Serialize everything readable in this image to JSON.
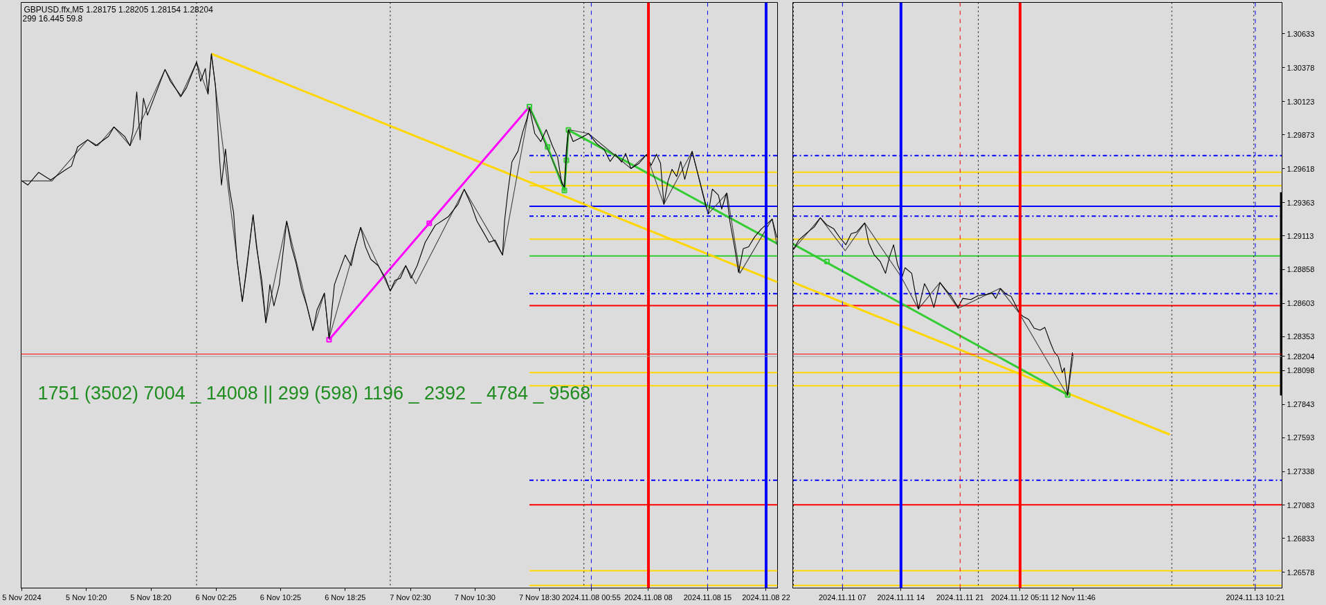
{
  "chart_data": [
    {
      "type": "line",
      "title": "GBPUSD.ffx,M5 1.28175 1.28205 1.28154 1.28204",
      "subtitle": "299 16.445 59.8",
      "annotations": [
        "1751 (3502) 7004 _ 14008 || 299 (598) 1196 _ 2392 _ 4784 _ 9568"
      ],
      "xlim": [
        "2024-11-05T02:15",
        "2024-11-09T00:00"
      ],
      "xticks": [
        {
          "value": "2024-11-05T02:20",
          "label": "5 Nov 2024"
        },
        {
          "value": "2024-11-05T10:20",
          "label": "5 Nov 10:20"
        },
        {
          "value": "2024-11-05T18:20",
          "label": "5 Nov 18:20"
        },
        {
          "value": "2024-11-06T02:25",
          "label": "6 Nov 02:25"
        },
        {
          "value": "2024-11-06T10:25",
          "label": "6 Nov 10:25"
        },
        {
          "value": "2024-11-06T18:25",
          "label": "6 Nov 18:25"
        },
        {
          "value": "2024-11-07T02:30",
          "label": "7 Nov 02:30"
        },
        {
          "value": "2024-11-07T10:30",
          "label": "7 Nov 10:30"
        },
        {
          "value": "2024-11-07T18:30",
          "label": "7 Nov 18:30"
        },
        {
          "value": "2024-11-08T00:55",
          "label": "2024.11.08 00:55"
        },
        {
          "value": "2024-11-08T08:00",
          "label": "2024.11.08 08"
        },
        {
          "value": "2024-11-08T15:20",
          "label": "2024.11.08 15"
        },
        {
          "value": "2024-11-08T22:35",
          "label": "2024.11.08 22"
        }
      ],
      "ylim": [
        1.2646,
        1.3087
      ],
      "tick_labels": "x",
      "grid": false,
      "series": [
        {
          "color": "#0000ff",
          "line_style": "dashdot",
          "x": [
            "2024-11-07T17:15",
            "2024-11-09T00:00"
          ],
          "values": [
            1.29717,
            1.29717
          ]
        },
        {
          "color": "#ffd700",
          "x": [
            "2024-11-07T17:15",
            "2024-11-09T00:00"
          ],
          "values": [
            1.29592,
            1.29592
          ]
        },
        {
          "color": "#ffd700",
          "x": [
            "2024-11-07T17:15",
            "2024-11-09T00:00"
          ],
          "values": [
            1.2949,
            1.2949
          ]
        },
        {
          "color": "#0000ff",
          "x": [
            "2024-11-07T17:15",
            "2024-11-09T00:00"
          ],
          "values": [
            1.29335,
            1.29335
          ]
        },
        {
          "color": "#0000ff",
          "line_style": "dashdot",
          "x": [
            "2024-11-07T17:15",
            "2024-11-09T00:00"
          ],
          "values": [
            1.2926,
            1.2926
          ]
        },
        {
          "color": "#ffd700",
          "x": [
            "2024-11-07T17:15",
            "2024-11-09T00:00"
          ],
          "values": [
            1.29087,
            1.29087
          ]
        },
        {
          "color": "#32cd32",
          "x": [
            "2024-11-07T17:15",
            "2024-11-09T00:00"
          ],
          "values": [
            1.28961,
            1.28961
          ]
        },
        {
          "color": "#0000ff",
          "line_style": "dashdot",
          "x": [
            "2024-11-07T17:15",
            "2024-11-09T00:00"
          ],
          "values": [
            1.28677,
            1.28677
          ]
        },
        {
          "color": "#ff0000",
          "x": [
            "2024-11-07T17:15",
            "2024-11-09T00:00"
          ],
          "values": [
            1.28587,
            1.28587
          ]
        },
        {
          "color": "#ffd700",
          "x": [
            "2024-11-07T17:15",
            "2024-11-09T00:00"
          ],
          "values": [
            1.28082,
            1.28082
          ]
        },
        {
          "color": "#ffd700",
          "x": [
            "2024-11-07T17:15",
            "2024-11-09T00:00"
          ],
          "values": [
            1.27983,
            1.27983
          ]
        },
        {
          "color": "#0000ff",
          "line_style": "dashdot",
          "x": [
            "2024-11-07T17:15",
            "2024-11-09T00:00"
          ],
          "values": [
            1.27272,
            1.27272
          ]
        },
        {
          "color": "#ff0000",
          "x": [
            "2024-11-07T17:15",
            "2024-11-09T00:00"
          ],
          "values": [
            1.27087,
            1.27087
          ]
        },
        {
          "color": "#ffd700",
          "x": [
            "2024-11-07T17:15",
            "2024-11-09T00:00"
          ],
          "values": [
            1.2659,
            1.2659
          ]
        },
        {
          "color": "#ffd700",
          "x": [
            "2024-11-07T17:15",
            "2024-11-09T00:00"
          ],
          "values": [
            1.2648,
            1.2648
          ]
        },
        {
          "color": "#ffd700",
          "x": [
            "2024-11-06T01:50",
            "2024-11-09T00:00"
          ],
          "values": [
            1.30483,
            1.28763
          ]
        },
        {
          "color": "#ff00ff",
          "marker": "square",
          "x": [
            "2024-11-06T16:25",
            "2024-11-07T04:50",
            "2024-11-07T17:15"
          ],
          "values": [
            1.2833,
            1.29207,
            1.30085
          ]
        },
        {
          "color": "#32cd32",
          "marker": "square",
          "x": [
            "2024-11-07T17:15",
            "2024-11-07T19:30",
            "2024-11-07T21:35",
            "2024-11-07T21:50",
            "2024-11-07T22:05"
          ],
          "values": [
            1.30085,
            1.29782,
            1.29453,
            1.29681,
            1.29909
          ]
        },
        {
          "color": "#32cd32",
          "x": [
            "2024-11-07T22:05",
            "2024-11-09T00:00"
          ],
          "values": [
            1.29909,
            1.29052
          ]
        },
        {
          "color": "#404040",
          "x": [
            "2024-11-05T02:20",
            "2024-11-05T06:05",
            "2024-11-05T10:30",
            "2024-11-05T11:45",
            "2024-11-05T13:45",
            "2024-11-05T15:45",
            "2024-11-05T20:05",
            "2024-11-05T22:00",
            "2024-11-06T00:00",
            "2024-11-06T01:25",
            "2024-11-06T01:50",
            "2024-11-06T05:40",
            "2024-11-06T07:00",
            "2024-11-06T08:35",
            "2024-11-06T11:10",
            "2024-11-06T14:25",
            "2024-11-06T15:50",
            "2024-11-06T16:25",
            "2024-11-06T20:20",
            "2024-11-07T00:00",
            "2024-11-07T01:55",
            "2024-11-07T03:10",
            "2024-11-07T09:10",
            "2024-11-07T13:55",
            "2024-11-07T17:15",
            "2024-11-07T21:35",
            "2024-11-07T22:05",
            "2024-11-08T00:35",
            "2024-11-08T05:50",
            "2024-11-08T07:45",
            "2024-11-08T09:55",
            "2024-11-08T13:25",
            "2024-11-08T15:25",
            "2024-11-08T17:45",
            "2024-11-08T19:20",
            "2024-11-08T23:20",
            "2024-11-08T23:55"
          ],
          "values": [
            1.29526,
            1.29526,
            1.29836,
            1.29791,
            1.29932,
            1.29791,
            1.30365,
            1.30158,
            1.3042,
            1.3018,
            1.30483,
            1.28617,
            1.29271,
            1.28458,
            1.29223,
            1.284,
            1.28681,
            1.2834,
            1.29176,
            1.28697,
            1.28888,
            1.28751,
            1.29463,
            1.28968,
            1.30076,
            1.29478,
            1.29912,
            1.29882,
            1.29619,
            1.29724,
            1.2935,
            1.29748,
            1.29278,
            1.29434,
            1.2883,
            1.29239,
            1.29047
          ]
        },
        {
          "color": "#000000",
          "x": [
            "2024-11-05T02:20",
            "2024-11-05T03:05",
            "2024-11-05T04:25",
            "2024-11-05T05:55",
            "2024-11-05T07:40",
            "2024-11-05T08:30",
            "2024-11-05T09:15",
            "2024-11-05T10:30",
            "2024-11-05T11:30",
            "2024-11-05T13:05",
            "2024-11-05T13:45",
            "2024-11-05T15:05",
            "2024-11-05T15:45",
            "2024-11-05T16:05",
            "2024-11-05T16:35",
            "2024-11-05T17:00",
            "2024-11-05T17:25",
            "2024-11-05T17:55",
            "2024-11-05T18:55",
            "2024-11-05T20:05",
            "2024-11-05T20:45",
            "2024-11-05T22:05",
            "2024-11-05T22:45",
            "2024-11-06T00:00",
            "2024-11-06T00:30",
            "2024-11-06T01:05",
            "2024-11-06T01:25",
            "2024-11-06T01:50",
            "2024-11-06T02:20",
            "2024-11-06T02:50",
            "2024-11-06T03:05",
            "2024-11-06T03:35",
            "2024-11-06T04:05",
            "2024-11-06T04:35",
            "2024-11-06T05:00",
            "2024-11-06T05:40",
            "2024-11-06T06:10",
            "2024-11-06T07:00",
            "2024-11-06T07:25",
            "2024-11-06T08:05",
            "2024-11-06T08:35",
            "2024-11-06T09:05",
            "2024-11-06T09:35",
            "2024-11-06T10:15",
            "2024-11-06T11:10",
            "2024-11-06T11:45",
            "2024-11-06T12:20",
            "2024-11-06T13:00",
            "2024-11-06T13:40",
            "2024-11-06T14:25",
            "2024-11-06T14:55",
            "2024-11-06T15:50",
            "2024-11-06T16:25",
            "2024-11-06T17:05",
            "2024-11-06T17:45",
            "2024-11-06T18:25",
            "2024-11-06T19:10",
            "2024-11-06T19:40",
            "2024-11-06T20:20",
            "2024-11-06T20:55",
            "2024-11-06T21:35",
            "2024-11-06T22:30",
            "2024-11-06T23:25",
            "2024-11-07T00:00",
            "2024-11-07T00:35",
            "2024-11-07T01:15",
            "2024-11-07T01:55",
            "2024-11-07T02:35",
            "2024-11-07T03:20",
            "2024-11-07T04:20",
            "2024-11-07T05:35",
            "2024-11-07T07:10",
            "2024-11-07T08:25",
            "2024-11-07T09:10",
            "2024-11-07T10:00",
            "2024-11-07T10:45",
            "2024-11-07T11:30",
            "2024-11-07T12:15",
            "2024-11-07T13:00",
            "2024-11-07T13:55",
            "2024-11-07T14:10",
            "2024-11-07T14:35",
            "2024-11-07T15:05",
            "2024-11-07T15:50",
            "2024-11-07T16:25",
            "2024-11-07T16:55",
            "2024-11-07T17:15",
            "2024-11-07T17:55",
            "2024-11-07T18:40",
            "2024-11-07T19:20",
            "2024-11-07T20:05",
            "2024-11-07T20:45",
            "2024-11-07T21:15",
            "2024-11-07T21:35",
            "2024-11-07T21:50",
            "2024-11-07T22:05",
            "2024-11-07T22:40",
            "2024-11-07T23:40",
            "2024-11-08T00:35",
            "2024-11-08T01:35",
            "2024-11-08T02:30",
            "2024-11-08T03:15",
            "2024-11-08T03:55",
            "2024-11-08T04:40",
            "2024-11-08T05:10",
            "2024-11-08T05:50",
            "2024-11-08T06:50",
            "2024-11-08T07:45",
            "2024-11-08T08:20",
            "2024-11-08T09:00",
            "2024-11-08T09:30",
            "2024-11-08T09:55",
            "2024-11-08T10:25",
            "2024-11-08T10:55",
            "2024-11-08T11:30",
            "2024-11-08T12:00",
            "2024-11-08T12:30",
            "2024-11-08T13:25",
            "2024-11-08T13:55",
            "2024-11-08T14:35",
            "2024-11-08T15:05",
            "2024-11-08T15:25",
            "2024-11-08T15:55",
            "2024-11-08T16:40",
            "2024-11-08T17:05",
            "2024-11-08T17:40",
            "2024-11-08T18:05",
            "2024-11-08T18:40",
            "2024-11-08T19:10",
            "2024-11-08T19:45",
            "2024-11-08T20:25",
            "2024-11-08T21:10",
            "2024-11-08T22:00",
            "2024-11-08T22:50",
            "2024-11-08T23:20",
            "2024-11-08T23:55"
          ],
          "values": [
            1.29526,
            1.29495,
            1.2959,
            1.29533,
            1.29606,
            1.29638,
            1.29782,
            1.29836,
            1.29791,
            1.29861,
            1.29932,
            1.29861,
            1.29791,
            1.29893,
            1.30196,
            1.29836,
            1.30149,
            1.30021,
            1.3018,
            1.30365,
            1.30276,
            1.30164,
            1.30228,
            1.3042,
            1.30276,
            1.30372,
            1.3018,
            1.30483,
            1.30244,
            1.29702,
            1.29495,
            1.29766,
            1.29463,
            1.29287,
            1.28936,
            1.28617,
            1.28841,
            1.29271,
            1.29032,
            1.28777,
            1.28458,
            1.28745,
            1.28585,
            1.28745,
            1.29223,
            1.29032,
            1.28904,
            1.28713,
            1.28585,
            1.284,
            1.28553,
            1.28681,
            1.2834,
            1.28745,
            1.28857,
            1.28968,
            1.28888,
            1.29032,
            1.29176,
            1.29032,
            1.28936,
            1.28888,
            1.28793,
            1.28697,
            1.28777,
            1.28793,
            1.28888,
            1.28793,
            1.28888,
            1.29064,
            1.29192,
            1.29255,
            1.29351,
            1.29463,
            1.29351,
            1.29223,
            1.29144,
            1.29064,
            1.2908,
            1.28968,
            1.29223,
            1.29447,
            1.2967,
            1.2975,
            1.29893,
            1.29989,
            1.30076,
            1.29882,
            1.29822,
            1.29912,
            1.29792,
            1.29703,
            1.29508,
            1.29478,
            1.29763,
            1.29912,
            1.29822,
            1.29852,
            1.29882,
            1.29807,
            1.29763,
            1.29673,
            1.29727,
            1.29667,
            1.29733,
            1.29619,
            1.29658,
            1.29724,
            1.29643,
            1.29727,
            1.29658,
            1.2935,
            1.29523,
            1.29613,
            1.29559,
            1.29673,
            1.29538,
            1.29748,
            1.29628,
            1.29464,
            1.29344,
            1.29278,
            1.29464,
            1.29419,
            1.29314,
            1.29434,
            1.29224,
            1.2903,
            1.28836,
            1.29015,
            1.2903,
            1.29105,
            1.29165,
            1.29209,
            1.29239,
            1.291
          ]
        }
      ],
      "ref_lines": [
        {
          "axis": "x",
          "value": "2024-11-06T00:00",
          "color": "#000000",
          "line_style": "dotted"
        },
        {
          "axis": "x",
          "value": "2024-11-07T00:00",
          "color": "#000000",
          "line_style": "dotted"
        },
        {
          "axis": "x",
          "value": "2024-11-08T00:00",
          "color": "#000000",
          "line_style": "dotted"
        },
        {
          "axis": "x",
          "value": "2024-11-08T00:55",
          "color": "#0000ff",
          "line_style": "dashed"
        },
        {
          "axis": "x",
          "value": "2024-11-08T08:00",
          "color": "#ff0000"
        },
        {
          "axis": "x",
          "value": "2024-11-08T15:20",
          "color": "#0000ff",
          "line_style": "dashed"
        },
        {
          "axis": "x",
          "value": "2024-11-08T22:35",
          "color": "#0000ff"
        },
        {
          "axis": "y",
          "value": 1.28222,
          "color": "#ff0000"
        },
        {
          "axis": "y",
          "value": 1.28204,
          "color": "#a0a0a0"
        }
      ]
    },
    {
      "type": "line",
      "xlim": [
        "2024-11-11T01:00",
        "2024-11-13T13:40"
      ],
      "xticks": [
        {
          "value": "2024-11-11T07:10",
          "label": "2024.11.11 07"
        },
        {
          "value": "2024-11-11T14:25",
          "label": "2024.11.11 14"
        },
        {
          "value": "2024-11-11T21:45",
          "label": "2024.11.11 21"
        },
        {
          "value": "2024-11-12T05:11",
          "label": "2024.11.12 05:11"
        },
        {
          "value": "2024-11-12T11:46",
          "label": "12 Nov 11:46"
        },
        {
          "value": "2024-11-13T10:21",
          "label": "2024.11.13 10:21"
        }
      ],
      "ylim": [
        1.2646,
        1.3087
      ],
      "yticks": [
        1.26578,
        1.26833,
        1.27083,
        1.27338,
        1.27593,
        1.27843,
        1.28098,
        1.28204,
        1.28353,
        1.28603,
        1.28858,
        1.29113,
        1.29363,
        1.29618,
        1.29873,
        1.30123,
        1.30378,
        1.30633
      ],
      "grid": false,
      "series": [
        {
          "color": "#0000ff",
          "line_style": "dashdot",
          "x": [
            "2024-11-11T01:00",
            "2024-11-13T13:40"
          ],
          "values": [
            1.29717,
            1.29717
          ]
        },
        {
          "color": "#ffd700",
          "x": [
            "2024-11-11T01:00",
            "2024-11-13T13:40"
          ],
          "values": [
            1.29592,
            1.29592
          ]
        },
        {
          "color": "#ffd700",
          "x": [
            "2024-11-11T01:00",
            "2024-11-13T13:40"
          ],
          "values": [
            1.2949,
            1.2949
          ]
        },
        {
          "color": "#0000ff",
          "x": [
            "2024-11-11T01:00",
            "2024-11-13T13:40"
          ],
          "values": [
            1.29335,
            1.29335
          ]
        },
        {
          "color": "#0000ff",
          "line_style": "dashdot",
          "x": [
            "2024-11-11T01:00",
            "2024-11-13T13:40"
          ],
          "values": [
            1.2926,
            1.2926
          ]
        },
        {
          "color": "#ffd700",
          "x": [
            "2024-11-11T01:00",
            "2024-11-13T13:40"
          ],
          "values": [
            1.29087,
            1.29087
          ]
        },
        {
          "color": "#32cd32",
          "x": [
            "2024-11-11T01:00",
            "2024-11-13T13:40"
          ],
          "values": [
            1.28961,
            1.28961
          ]
        },
        {
          "color": "#0000ff",
          "line_style": "dashdot",
          "x": [
            "2024-11-11T01:00",
            "2024-11-13T13:40"
          ],
          "values": [
            1.28677,
            1.28677
          ]
        },
        {
          "color": "#ff0000",
          "x": [
            "2024-11-11T01:00",
            "2024-11-13T13:40"
          ],
          "values": [
            1.28587,
            1.28587
          ]
        },
        {
          "color": "#ffd700",
          "x": [
            "2024-11-11T01:00",
            "2024-11-13T13:40"
          ],
          "values": [
            1.28082,
            1.28082
          ]
        },
        {
          "color": "#ffd700",
          "x": [
            "2024-11-11T01:00",
            "2024-11-13T13:40"
          ],
          "values": [
            1.27983,
            1.27983
          ]
        },
        {
          "color": "#0000ff",
          "line_style": "dashdot",
          "x": [
            "2024-11-11T01:00",
            "2024-11-13T13:40"
          ],
          "values": [
            1.27272,
            1.27272
          ]
        },
        {
          "color": "#ff0000",
          "x": [
            "2024-11-11T01:00",
            "2024-11-13T13:40"
          ],
          "values": [
            1.27087,
            1.27087
          ]
        },
        {
          "color": "#ffd700",
          "x": [
            "2024-11-11T01:00",
            "2024-11-13T13:40"
          ],
          "values": [
            1.2659,
            1.2659
          ]
        },
        {
          "color": "#ffd700",
          "x": [
            "2024-11-11T01:00",
            "2024-11-13T13:40"
          ],
          "values": [
            1.2648,
            1.2648
          ]
        },
        {
          "color": "#ffd700",
          "x": [
            "2024-11-11T01:00",
            "2024-11-12T23:45"
          ],
          "values": [
            1.28763,
            1.27616
          ]
        },
        {
          "color": "#32cd32",
          "x": [
            "2024-11-11T01:00",
            "2024-11-12T11:05"
          ],
          "values": [
            1.29052,
            1.27915
          ]
        },
        {
          "type": "scatter",
          "color": "#32cd32",
          "marker": "square",
          "x": [
            "2024-11-11T05:15",
            "2024-11-12T11:05"
          ],
          "values": [
            1.28919,
            1.27915
          ]
        },
        {
          "color": "#404040",
          "x": [
            "2024-11-11T01:05",
            "2024-11-11T04:25",
            "2024-11-11T07:30",
            "2024-11-11T09:55",
            "2024-11-11T14:25",
            "2024-11-11T16:35",
            "2024-11-11T19:15",
            "2024-11-11T21:30",
            "2024-11-12T02:40",
            "2024-11-12T05:00",
            "2024-11-12T11:05",
            "2024-11-12T11:45"
          ],
          "values": [
            1.29009,
            1.29248,
            1.29,
            1.29209,
            1.28806,
            1.28561,
            1.28761,
            1.28566,
            1.28716,
            1.28537,
            1.27909,
            1.28204
          ]
        },
        {
          "color": "#000000",
          "x": [
            "2024-11-11T01:05",
            "2024-11-11T01:45",
            "2024-11-11T02:45",
            "2024-11-11T03:40",
            "2024-11-11T04:25",
            "2024-11-11T05:15",
            "2024-11-11T06:05",
            "2024-11-11T06:50",
            "2024-11-11T07:35",
            "2024-11-11T08:15",
            "2024-11-11T08:55",
            "2024-11-11T09:55",
            "2024-11-11T10:25",
            "2024-11-11T11:05",
            "2024-11-11T11:50",
            "2024-11-11T12:30",
            "2024-11-11T13:00",
            "2024-11-11T13:30",
            "2024-11-11T14:00",
            "2024-11-11T14:35",
            "2024-11-11T14:55",
            "2024-11-11T15:45",
            "2024-11-11T16:05",
            "2024-11-11T16:35",
            "2024-11-11T17:20",
            "2024-11-11T17:55",
            "2024-11-11T18:30",
            "2024-11-11T19:15",
            "2024-11-11T19:55",
            "2024-11-11T20:40",
            "2024-11-11T21:30",
            "2024-11-11T22:05",
            "2024-11-11T23:05",
            "2024-11-12T00:00",
            "2024-11-12T01:00",
            "2024-11-12T01:45",
            "2024-11-12T02:10",
            "2024-11-12T02:45",
            "2024-11-12T03:30",
            "2024-11-12T04:05",
            "2024-11-12T04:35",
            "2024-11-12T05:00",
            "2024-11-12T05:30",
            "2024-11-12T06:15",
            "2024-11-12T06:55",
            "2024-11-12T07:40",
            "2024-11-12T08:15",
            "2024-11-12T08:55",
            "2024-11-12T09:25",
            "2024-11-12T09:55",
            "2024-11-12T10:25",
            "2024-11-12T10:40",
            "2024-11-12T11:05",
            "2024-11-12T11:25",
            "2024-11-12T11:40",
            "2024-11-12T11:45"
          ],
          "values": [
            1.29009,
            1.29081,
            1.29135,
            1.29179,
            1.29248,
            1.29194,
            1.29165,
            1.29099,
            1.29045,
            1.29129,
            1.29141,
            1.29209,
            1.2906,
            1.2897,
            1.28919,
            1.2883,
            1.28955,
            1.29045,
            1.28895,
            1.28806,
            1.28872,
            1.2883,
            1.28716,
            1.28561,
            1.28752,
            1.28686,
            1.28573,
            1.28761,
            1.2871,
            1.28656,
            1.28573,
            1.28641,
            1.28632,
            1.28662,
            1.28671,
            1.2868,
            1.28641,
            1.28716,
            1.28671,
            1.28656,
            1.28596,
            1.28543,
            1.28507,
            1.28483,
            1.28417,
            1.28402,
            1.28423,
            1.28312,
            1.28238,
            1.28202,
            1.28082,
            1.28118,
            1.27915,
            1.28103,
            1.28232,
            1.28204
          ]
        },
        {
          "color": "#000000",
          "x": [
            "2024-11-13T13:35",
            "2024-11-13T13:35"
          ],
          "values": [
            1.2944,
            1.2791
          ]
        }
      ],
      "ref_lines": [
        {
          "axis": "x",
          "value": "2024-11-11T01:05",
          "color": "#000000",
          "line_style": "dotted"
        },
        {
          "axis": "x",
          "value": "2024-11-11T07:10",
          "color": "#0000ff",
          "line_style": "dashed"
        },
        {
          "axis": "x",
          "value": "2024-11-11T14:25",
          "color": "#0000ff"
        },
        {
          "axis": "x",
          "value": "2024-11-11T21:45",
          "color": "#ff0000",
          "line_style": "dashed"
        },
        {
          "axis": "x",
          "value": "2024-11-12T00:00",
          "color": "#000000",
          "line_style": "dotted"
        },
        {
          "axis": "x",
          "value": "2024-11-12T05:11",
          "color": "#ff0000"
        },
        {
          "axis": "x",
          "value": "2024-11-13T00:00",
          "color": "#000000",
          "line_style": "dotted"
        },
        {
          "axis": "x",
          "value": "2024-11-13T10:10",
          "color": "#000000",
          "line_style": "dotted"
        },
        {
          "axis": "x",
          "value": "2024-11-13T10:21",
          "color": "#0000ff",
          "line_style": "dashed"
        },
        {
          "axis": "y",
          "value": 1.28222,
          "color": "#ff0000"
        },
        {
          "axis": "y",
          "value": 1.28204,
          "color": "#a0a0a0"
        }
      ]
    }
  ]
}
